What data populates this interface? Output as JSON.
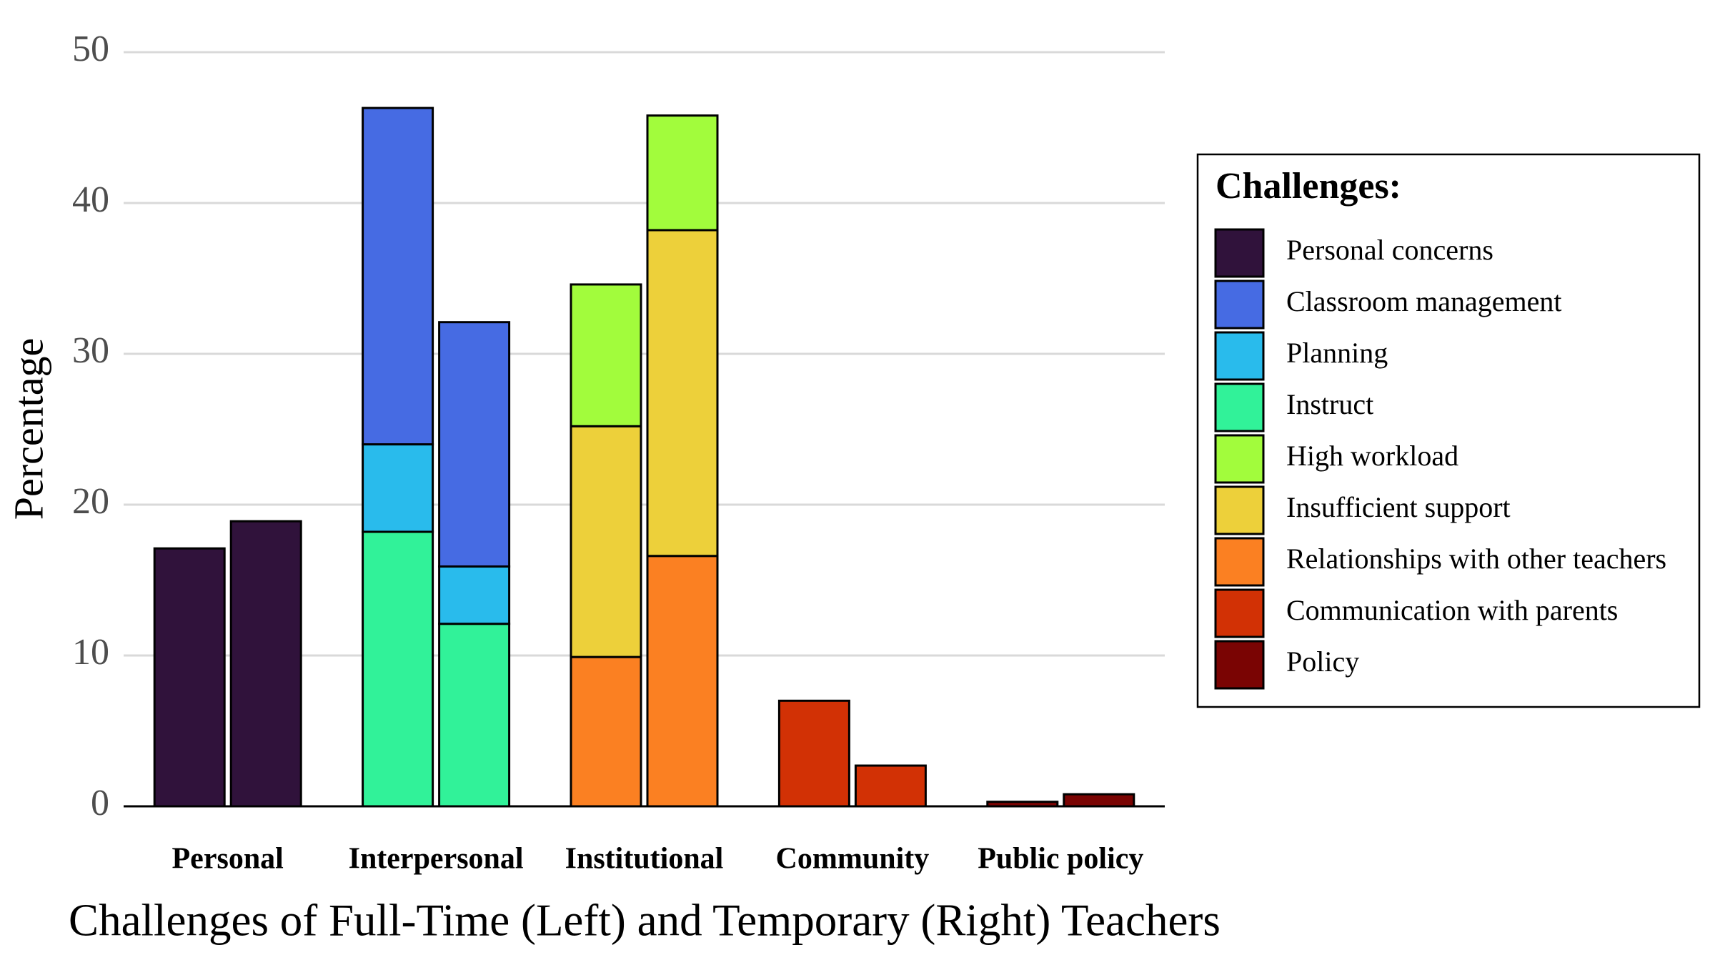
{
  "chart_data": {
    "type": "paired_stacked_bar",
    "x_label": "Challenges of Full-Time (Left) and Temporary (Right) Teachers",
    "y_label": "Percentage",
    "legend_title": "Challenges:",
    "legend_position": "right",
    "categories": [
      "Personal",
      "Interpersonal",
      "Institutional",
      "Community",
      "Public policy"
    ],
    "series": [
      {
        "name": "Personal concerns",
        "color": "#30123b",
        "values": [
          [
            17.1,
            18.9
          ],
          null,
          null,
          null,
          null
        ]
      },
      {
        "name": "Classroom management",
        "color": "#466be3",
        "values": [
          null,
          [
            22.3,
            16.2
          ],
          null,
          null,
          null
        ]
      },
      {
        "name": "Planning",
        "color": "#29bbec",
        "values": [
          null,
          [
            5.8,
            3.8
          ],
          null,
          null,
          null
        ]
      },
      {
        "name": "Instruct",
        "color": "#31f299",
        "values": [
          null,
          [
            18.2,
            12.1
          ],
          null,
          null,
          null
        ]
      },
      {
        "name": "High workload",
        "color": "#a2fc3c",
        "values": [
          null,
          null,
          [
            9.4,
            7.6
          ],
          null,
          null
        ]
      },
      {
        "name": "Insufficient support",
        "color": "#edd03a",
        "values": [
          null,
          null,
          [
            15.3,
            21.6
          ],
          null,
          null
        ]
      },
      {
        "name": "Relationships with other teachers",
        "color": "#fb8022",
        "values": [
          null,
          null,
          [
            9.9,
            16.6
          ],
          null,
          null
        ]
      },
      {
        "name": "Communication with parents",
        "color": "#d23105",
        "values": [
          null,
          null,
          null,
          [
            7.0,
            2.7
          ],
          null
        ]
      },
      {
        "name": "Policy",
        "color": "#7a0403",
        "values": [
          null,
          null,
          null,
          null,
          [
            0.3,
            0.8
          ]
        ]
      }
    ],
    "ylim": [
      0,
      50
    ],
    "yticks": [
      0,
      10,
      20,
      30,
      40,
      50
    ],
    "grid": true
  }
}
